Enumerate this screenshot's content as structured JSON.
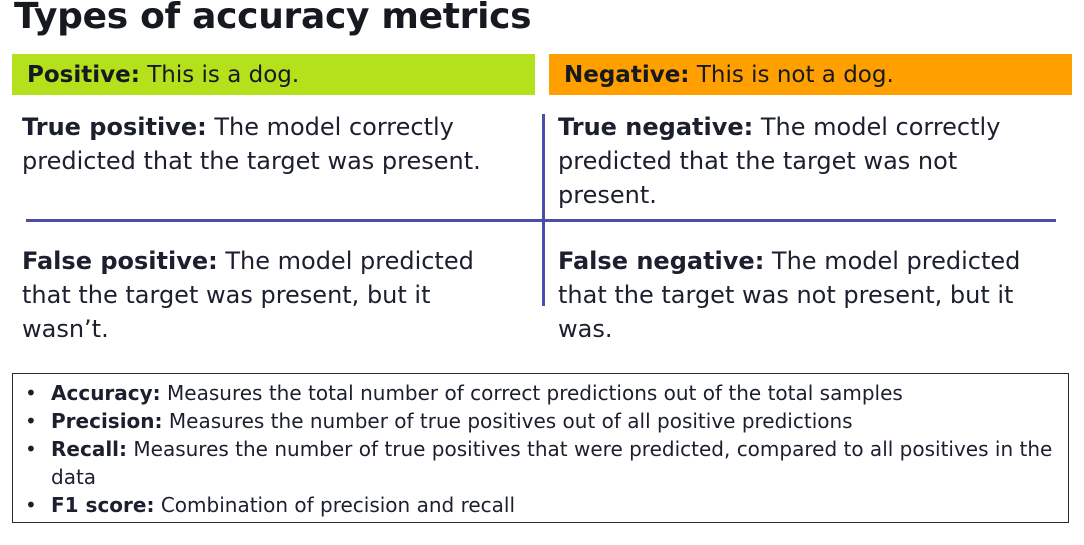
{
  "title": "Types of accuracy metrics",
  "banners": {
    "positive": {
      "label": "Positive:",
      "text": " This is a dog."
    },
    "negative": {
      "label": "Negative:",
      "text": " This is not a dog."
    }
  },
  "cells": {
    "true_positive": {
      "label": "True positive:",
      "text": " The model correctly predicted that the target was present."
    },
    "true_negative": {
      "label": "True negative:",
      "text": " The model correctly predicted that the target was not present."
    },
    "false_positive": {
      "label": "False positive:",
      "text": " The model predicted that the target was present, but it wasn’t."
    },
    "false_negative": {
      "label": "False negative:",
      "text": " The model predicted that the target was not present, but it was."
    }
  },
  "definitions": [
    {
      "term": "Accuracy:",
      "text": " Measures the total number of correct predictions out of the total samples"
    },
    {
      "term": "Precision:",
      "text": " Measures the number of true positives out of all positive predictions"
    },
    {
      "term": "Recall:",
      "text": " Measures the number of true positives that were predicted, compared to all positives in the data"
    },
    {
      "term": "F1 score:",
      "text": " Combination of precision and recall"
    }
  ],
  "bullet": "•",
  "colors": {
    "positive": "#b4e01c",
    "negative": "#ff9f00",
    "divider": "#4a4ea8"
  }
}
